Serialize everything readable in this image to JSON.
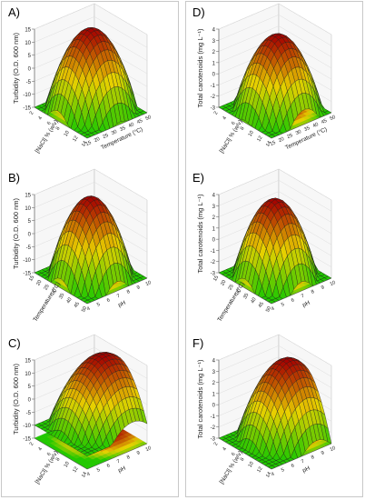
{
  "chart_data": [
    {
      "id": "A",
      "type": "surface3d",
      "label": "A)",
      "zlabel": "Turbidity (O.D. 600 nm)",
      "xlabel": "[NaCl] % (w/v)",
      "ylabel": "Temperature (°C)",
      "x_ticks": [
        "2",
        "4",
        "6",
        "8",
        "10",
        "12",
        "14"
      ],
      "y_ticks": [
        "15",
        "20",
        "25",
        "30",
        "35",
        "40",
        "45",
        "50"
      ],
      "z_ticks": [
        "-15",
        "-10",
        "-5",
        "0",
        "5",
        "10",
        "15"
      ],
      "zlim": [
        -15,
        15
      ],
      "surface": {
        "max": 15,
        "min": -15,
        "peak_x": 0.55,
        "peak_y": 0.55,
        "curv_x": 1.0,
        "curv_y": 0.9
      }
    },
    {
      "id": "D",
      "type": "surface3d",
      "label": "D)",
      "zlabel": "Total carotenoids (mg L⁻¹)",
      "xlabel": "[NaCl] % (w/v)",
      "ylabel": "Temperature (°C)",
      "x_ticks": [
        "2",
        "4",
        "6",
        "8",
        "10",
        "12",
        "14"
      ],
      "y_ticks": [
        "15",
        "20",
        "25",
        "30",
        "35",
        "40",
        "45",
        "50"
      ],
      "z_ticks": [
        "-3",
        "-2",
        "-1",
        "0",
        "1",
        "2",
        "3",
        "4"
      ],
      "zlim": [
        -3,
        4
      ],
      "surface": {
        "max": 3.6,
        "min": -3,
        "peak_x": 0.5,
        "peak_y": 0.55,
        "curv_x": 1.0,
        "curv_y": 1.0
      }
    },
    {
      "id": "B",
      "type": "surface3d",
      "label": "B)",
      "zlabel": "Turbidity (O.D. 600 nm)",
      "xlabel": "Temperature (°C)",
      "ylabel": "pH",
      "x_ticks": [
        "15",
        "20",
        "25",
        "30",
        "35",
        "40",
        "45",
        "50"
      ],
      "y_ticks": [
        "4",
        "5",
        "6",
        "7",
        "8",
        "9",
        "10"
      ],
      "z_ticks": [
        "-15",
        "-10",
        "-5",
        "0",
        "5",
        "10",
        "15"
      ],
      "zlim": [
        -15,
        15
      ],
      "surface": {
        "max": 15,
        "min": -15,
        "peak_x": 0.5,
        "peak_y": 0.5,
        "curv_x": 1.1,
        "curv_y": 1.1
      }
    },
    {
      "id": "E",
      "type": "surface3d",
      "label": "E)",
      "zlabel": "Total carotenoids (mg L⁻¹)",
      "xlabel": "Temperature (°C)",
      "ylabel": "pH",
      "x_ticks": [
        "15",
        "20",
        "25",
        "30",
        "35",
        "40",
        "45",
        "50"
      ],
      "y_ticks": [
        "4",
        "5",
        "6",
        "7",
        "8",
        "9",
        "10"
      ],
      "z_ticks": [
        "-3",
        "-2",
        "-1",
        "0",
        "1",
        "2",
        "3",
        "4"
      ],
      "zlim": [
        -3,
        4
      ],
      "surface": {
        "max": 3.8,
        "min": -3,
        "peak_x": 0.5,
        "peak_y": 0.5,
        "curv_x": 1.1,
        "curv_y": 1.1
      }
    },
    {
      "id": "C",
      "type": "surface3d",
      "label": "C)",
      "zlabel": "Turbidity (O.D. 600 nm)",
      "xlabel": "[NaCl] % (w/v)",
      "ylabel": "pH",
      "x_ticks": [
        "2",
        "4",
        "6",
        "8",
        "10",
        "12",
        "14"
      ],
      "y_ticks": [
        "4",
        "5",
        "6",
        "7",
        "8",
        "9",
        "10"
      ],
      "z_ticks": [
        "-15",
        "-10",
        "-5",
        "0",
        "5",
        "10",
        "15"
      ],
      "zlim": [
        -15,
        15
      ],
      "surface": {
        "max": 15,
        "min": -10,
        "peak_x": 0.55,
        "peak_y": 0.75,
        "curv_x": 0.8,
        "curv_y": 0.6
      }
    },
    {
      "id": "F",
      "type": "surface3d",
      "label": "F)",
      "zlabel": "Total carotenoids (mg L⁻¹)",
      "xlabel": "[NaCl] % (w/v)",
      "ylabel": "pH",
      "x_ticks": [
        "2",
        "4",
        "6",
        "8",
        "10",
        "12",
        "14"
      ],
      "y_ticks": [
        "4",
        "5",
        "6",
        "7",
        "8",
        "9",
        "10"
      ],
      "z_ticks": [
        "-3",
        "-2",
        "-1",
        "0",
        "1",
        "2",
        "3",
        "4"
      ],
      "zlim": [
        -3,
        4
      ],
      "surface": {
        "max": 3.6,
        "min": -3,
        "peak_x": 0.55,
        "peak_y": 0.75,
        "curv_x": 0.9,
        "curv_y": 0.7
      }
    }
  ],
  "colors": {
    "high": "#a50000",
    "mid": "#e8d000",
    "low": "#22c800",
    "line": "#202020",
    "frame": "#c8c8c8"
  }
}
